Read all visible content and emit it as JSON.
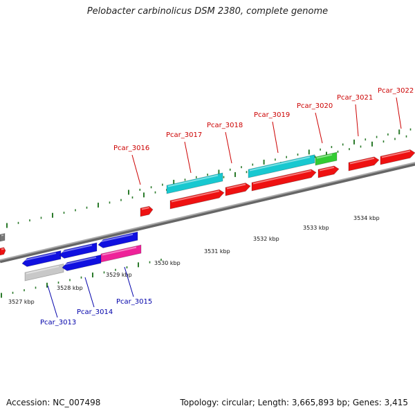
{
  "title": "Pelobacter carbinolicus DSM 2380, complete genome",
  "footer": {
    "accession": "Accession: NC_007498",
    "summary": "Topology: circular; Length: 3,665,893 bp; Genes: 3,415"
  },
  "colors": {
    "forward_label": "#cc0000",
    "reverse_label": "#0000aa",
    "backbone": "#888888",
    "tick": "#2a7a2a"
  },
  "scale_labels": [
    "3527 kbp",
    "3528 kbp",
    "3529 kbp",
    "3530 kbp",
    "3531 kbp",
    "3532 kbp",
    "3533 kbp",
    "3534 kbp"
  ],
  "gene_labels_forward": [
    "Pcar_3016",
    "Pcar_3017",
    "Pcar_3018",
    "Pcar_3019",
    "Pcar_3020",
    "Pcar_3021",
    "Pcar_3022"
  ],
  "gene_labels_reverse": [
    "Pcar_3013",
    "Pcar_3014",
    "Pcar_3015"
  ],
  "gene_colors": {
    "red": "#ee1111",
    "blue": "#1010e0",
    "cyan": "#18c8d0",
    "green": "#33cc33",
    "magenta": "#ee2299",
    "gray": "#c8c8c8",
    "darkgray": "#777777"
  }
}
